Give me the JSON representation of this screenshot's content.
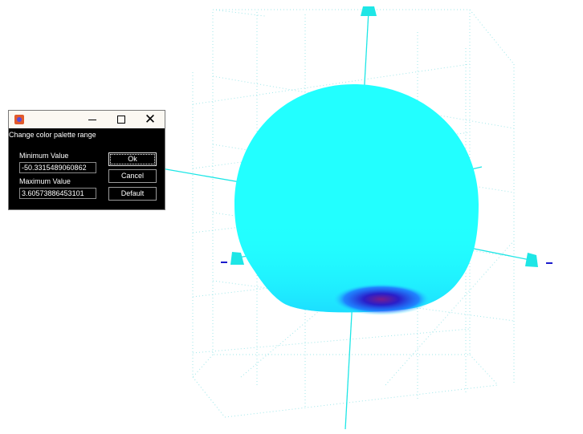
{
  "dialog": {
    "caption": "Change color palette range",
    "min_label": "Minimum Value",
    "min_value": "-50.3315489060862",
    "max_label": "Maximum Value",
    "max_value": "3.60573886453101",
    "ok_label": "Ok",
    "cancel_label": "Cancel",
    "default_label": "Default",
    "close_glyph": "✕"
  },
  "scene": {
    "surface_color": "#22ffff",
    "axis_color": "#1ee6e6",
    "grid_color": "#9fe7ea",
    "low_color": "#1b1bcc",
    "min_color": "#7a1e8c"
  }
}
